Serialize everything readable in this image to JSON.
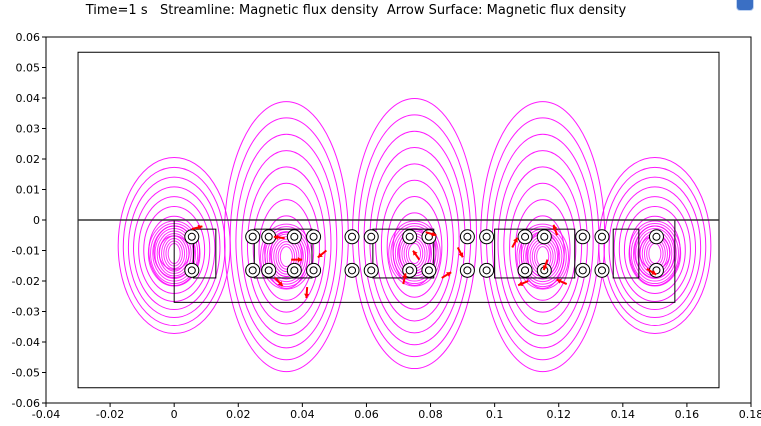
{
  "title": "Time=1 s   Streamline: Magnetic flux density  Arrow Surface: Magnetic flux density",
  "corner_icon": "app-logo-icon",
  "colors": {
    "streamline": "#ff00ff",
    "arrow": "#ff0000",
    "geometry": "#000000",
    "axis": "#000000"
  },
  "chart_data": {
    "type": "scatter",
    "title": "Time=1 s   Streamline: Magnetic flux density  Arrow Surface: Magnetic flux density",
    "xlim": [
      -0.04,
      0.18
    ],
    "ylim": [
      -0.06,
      0.06
    ],
    "x_ticks": [
      "-0.04",
      "-0.02",
      "0",
      "0.02",
      "0.04",
      "0.06",
      "0.08",
      "0.1",
      "0.12",
      "0.14",
      "0.16",
      "0.18"
    ],
    "y_ticks": [
      "0.06",
      "0.05",
      "0.04",
      "0.03",
      "0.02",
      "0.01",
      "0",
      "-0.01",
      "-0.02",
      "-0.03",
      "-0.04",
      "-0.05",
      "-0.06"
    ],
    "geometry": {
      "outer_box": {
        "x": [
          -0.03,
          0.18
        ],
        "y": [
          -0.055,
          0.055
        ]
      },
      "core_box": {
        "x": [
          0,
          0.15
        ],
        "y": [
          -0.027,
          0
        ]
      },
      "divider_y": 0,
      "coil_rows_y": [
        -0.0055,
        -0.0165
      ],
      "coil_x": [
        0.003,
        0.022,
        0.027,
        0.035,
        0.041,
        0.053,
        0.059,
        0.071,
        0.077,
        0.089,
        0.095,
        0.107,
        0.113,
        0.125,
        0.131,
        0.148
      ],
      "slots": [
        {
          "x": [
            0.006,
            0.013
          ],
          "y": [
            -0.003,
            -0.019
          ]
        },
        {
          "x": [
            0.025,
            0.043
          ],
          "y": [
            -0.003,
            -0.019
          ]
        },
        {
          "x": [
            0.062,
            0.081
          ],
          "y": [
            -0.003,
            -0.019
          ]
        },
        {
          "x": [
            0.1,
            0.125
          ],
          "y": [
            -0.003,
            -0.019
          ]
        },
        {
          "x": [
            0.137,
            0.145
          ],
          "y": [
            -0.003,
            -0.019
          ]
        }
      ]
    },
    "streamline_centers": [
      {
        "x": 0.0,
        "y": -0.011
      },
      {
        "x": 0.035,
        "y": -0.012
      },
      {
        "x": 0.075,
        "y": -0.011
      },
      {
        "x": 0.115,
        "y": -0.012
      },
      {
        "x": 0.15,
        "y": -0.011
      }
    ],
    "grid": false,
    "legend": "none"
  }
}
